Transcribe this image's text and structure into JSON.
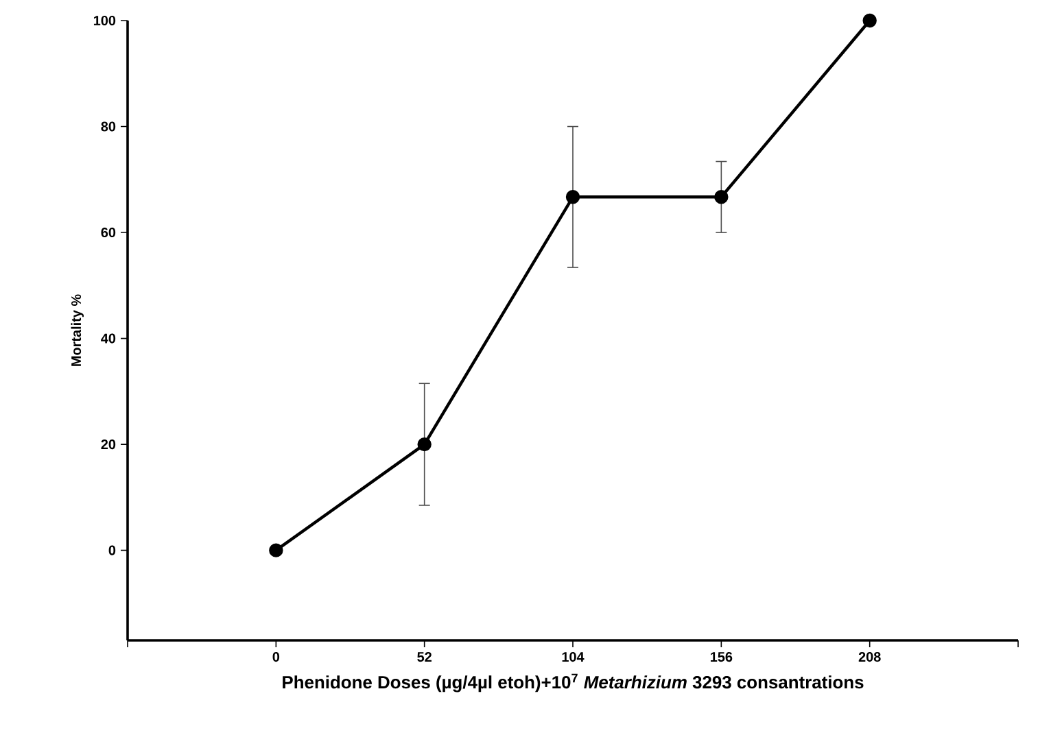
{
  "chart_data": {
    "type": "line",
    "xlabel": "Phenidone Doses (µg/4µl etoh)+10$^{7}$ *Metarhizium* 3293 consantrations",
    "ylabel": "Mortality %",
    "x": [
      0,
      52,
      104,
      156,
      208
    ],
    "values": [
      0,
      20,
      66.7,
      66.7,
      100
    ],
    "errors": [
      null,
      11.5,
      13.3,
      6.7,
      null
    ],
    "color": "#000000",
    "marker": "circle",
    "line_style": "solid",
    "xlim": [
      -52,
      260
    ],
    "xticks": [
      {
        "value": -52,
        "label": null
      },
      0,
      52,
      104,
      156,
      208,
      {
        "value": 260,
        "label": null
      }
    ],
    "ylim": [
      -17,
      100
    ],
    "yticks": [
      0,
      20,
      40,
      60,
      80,
      100
    ],
    "grid": false
  }
}
